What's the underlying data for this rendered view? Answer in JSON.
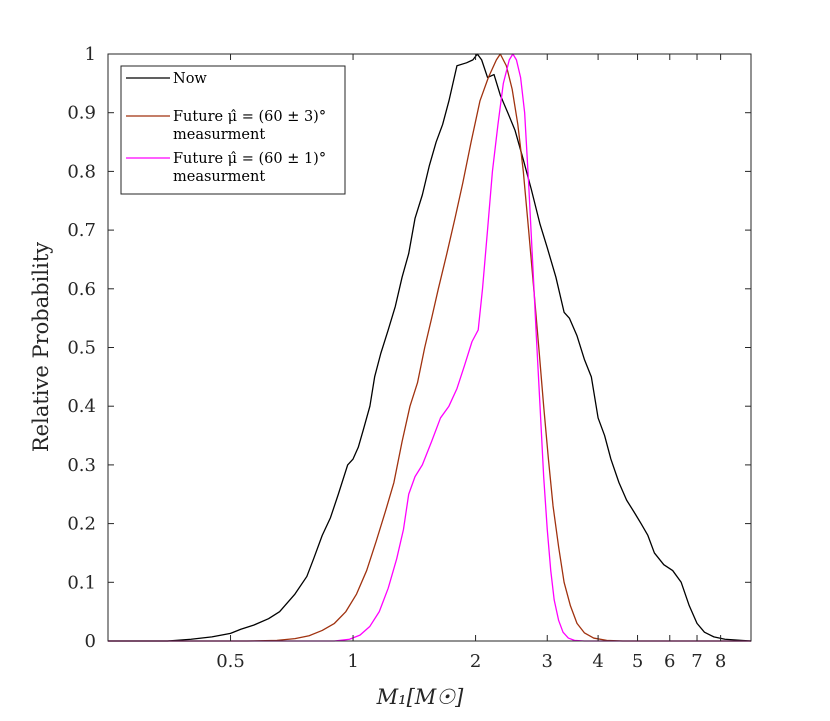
{
  "chart_data": {
    "type": "line",
    "title": "",
    "xlabel": "M₁[M☉]",
    "ylabel": "Relative Probability",
    "xscale": "log",
    "xlim": [
      0.25,
      9.5
    ],
    "ylim": [
      0,
      1
    ],
    "grid": false,
    "legend_position": "top-left",
    "x_ticks": [
      {
        "value": 0.5,
        "label": "0.5"
      },
      {
        "value": 1,
        "label": "1"
      },
      {
        "value": 2,
        "label": "2"
      },
      {
        "value": 3,
        "label": "3"
      },
      {
        "value": 4,
        "label": "4"
      },
      {
        "value": 5,
        "label": "5"
      },
      {
        "value": 6,
        "label": "6"
      },
      {
        "value": 7,
        "label": "7"
      },
      {
        "value": 8,
        "label": "8"
      }
    ],
    "y_ticks": [
      {
        "value": 0,
        "label": "0"
      },
      {
        "value": 0.1,
        "label": "0.1"
      },
      {
        "value": 0.2,
        "label": "0.2"
      },
      {
        "value": 0.3,
        "label": "0.3"
      },
      {
        "value": 0.4,
        "label": "0.4"
      },
      {
        "value": 0.5,
        "label": "0.5"
      },
      {
        "value": 0.6,
        "label": "0.6"
      },
      {
        "value": 0.7,
        "label": "0.7"
      },
      {
        "value": 0.8,
        "label": "0.8"
      },
      {
        "value": 0.9,
        "label": "0.9"
      },
      {
        "value": 1,
        "label": "1"
      }
    ],
    "series": [
      {
        "name": "Now",
        "legend_lines": [
          "Now"
        ],
        "color": "#000000",
        "points": [
          [
            0.25,
            0
          ],
          [
            0.35,
            0.0
          ],
          [
            0.4,
            0.003
          ],
          [
            0.45,
            0.007
          ],
          [
            0.5,
            0.013
          ],
          [
            0.53,
            0.02
          ],
          [
            0.57,
            0.027
          ],
          [
            0.62,
            0.038
          ],
          [
            0.66,
            0.05
          ],
          [
            0.72,
            0.08
          ],
          [
            0.77,
            0.11
          ],
          [
            0.8,
            0.14
          ],
          [
            0.84,
            0.18
          ],
          [
            0.88,
            0.21
          ],
          [
            0.92,
            0.25
          ],
          [
            0.97,
            0.3
          ],
          [
            1.0,
            0.31
          ],
          [
            1.03,
            0.33
          ],
          [
            1.06,
            0.36
          ],
          [
            1.1,
            0.4
          ],
          [
            1.13,
            0.45
          ],
          [
            1.17,
            0.49
          ],
          [
            1.22,
            0.53
          ],
          [
            1.27,
            0.57
          ],
          [
            1.32,
            0.62
          ],
          [
            1.37,
            0.66
          ],
          [
            1.42,
            0.72
          ],
          [
            1.48,
            0.76
          ],
          [
            1.54,
            0.81
          ],
          [
            1.6,
            0.85
          ],
          [
            1.66,
            0.88
          ],
          [
            1.72,
            0.92
          ],
          [
            1.8,
            0.98
          ],
          [
            1.9,
            0.985
          ],
          [
            1.97,
            0.99
          ],
          [
            2.02,
            1.0
          ],
          [
            2.07,
            0.99
          ],
          [
            2.14,
            0.96
          ],
          [
            2.22,
            0.965
          ],
          [
            2.3,
            0.93
          ],
          [
            2.4,
            0.9
          ],
          [
            2.5,
            0.87
          ],
          [
            2.62,
            0.82
          ],
          [
            2.74,
            0.77
          ],
          [
            2.88,
            0.71
          ],
          [
            3.0,
            0.67
          ],
          [
            3.15,
            0.62
          ],
          [
            3.3,
            0.56
          ],
          [
            3.4,
            0.55
          ],
          [
            3.55,
            0.52
          ],
          [
            3.7,
            0.48
          ],
          [
            3.85,
            0.45
          ],
          [
            4.0,
            0.38
          ],
          [
            4.15,
            0.35
          ],
          [
            4.3,
            0.31
          ],
          [
            4.5,
            0.27
          ],
          [
            4.7,
            0.24
          ],
          [
            4.9,
            0.22
          ],
          [
            5.1,
            0.2
          ],
          [
            5.3,
            0.18
          ],
          [
            5.5,
            0.15
          ],
          [
            5.8,
            0.13
          ],
          [
            6.1,
            0.12
          ],
          [
            6.4,
            0.1
          ],
          [
            6.7,
            0.06
          ],
          [
            7.0,
            0.03
          ],
          [
            7.3,
            0.015
          ],
          [
            7.7,
            0.007
          ],
          [
            8.2,
            0.003
          ],
          [
            9.0,
            0.001
          ],
          [
            9.5,
            0
          ]
        ]
      },
      {
        "name": "Future μ̂ = (60 ± 3)°",
        "legend_lines": [
          "Future μ̂ = (60 ± 3)°",
          "measurment"
        ],
        "color": "#a0320f",
        "points": [
          [
            0.25,
            0
          ],
          [
            0.55,
            0
          ],
          [
            0.65,
            0.001
          ],
          [
            0.72,
            0.004
          ],
          [
            0.78,
            0.009
          ],
          [
            0.84,
            0.018
          ],
          [
            0.9,
            0.03
          ],
          [
            0.96,
            0.05
          ],
          [
            1.02,
            0.08
          ],
          [
            1.08,
            0.12
          ],
          [
            1.14,
            0.17
          ],
          [
            1.2,
            0.22
          ],
          [
            1.26,
            0.27
          ],
          [
            1.32,
            0.34
          ],
          [
            1.38,
            0.4
          ],
          [
            1.44,
            0.44
          ],
          [
            1.5,
            0.5
          ],
          [
            1.56,
            0.55
          ],
          [
            1.62,
            0.6
          ],
          [
            1.7,
            0.66
          ],
          [
            1.78,
            0.72
          ],
          [
            1.86,
            0.78
          ],
          [
            1.95,
            0.85
          ],
          [
            2.05,
            0.92
          ],
          [
            2.15,
            0.96
          ],
          [
            2.25,
            0.99
          ],
          [
            2.3,
            1.0
          ],
          [
            2.38,
            0.98
          ],
          [
            2.46,
            0.94
          ],
          [
            2.54,
            0.88
          ],
          [
            2.62,
            0.8
          ],
          [
            2.7,
            0.7
          ],
          [
            2.78,
            0.6
          ],
          [
            2.86,
            0.5
          ],
          [
            2.94,
            0.4
          ],
          [
            3.02,
            0.31
          ],
          [
            3.1,
            0.23
          ],
          [
            3.2,
            0.16
          ],
          [
            3.3,
            0.1
          ],
          [
            3.42,
            0.06
          ],
          [
            3.55,
            0.03
          ],
          [
            3.7,
            0.014
          ],
          [
            3.9,
            0.005
          ],
          [
            4.2,
            0.001
          ],
          [
            4.6,
            0
          ],
          [
            9.5,
            0
          ]
        ]
      },
      {
        "name": "Future μ̂ = (60 ± 1)°",
        "legend_lines": [
          "Future μ̂ = (60 ± 1)°",
          "measurment"
        ],
        "color": "#ff00ff",
        "points": [
          [
            0.25,
            0
          ],
          [
            0.9,
            0
          ],
          [
            0.98,
            0.003
          ],
          [
            1.04,
            0.01
          ],
          [
            1.1,
            0.025
          ],
          [
            1.16,
            0.05
          ],
          [
            1.22,
            0.09
          ],
          [
            1.28,
            0.14
          ],
          [
            1.33,
            0.19
          ],
          [
            1.37,
            0.25
          ],
          [
            1.42,
            0.28
          ],
          [
            1.48,
            0.3
          ],
          [
            1.56,
            0.34
          ],
          [
            1.64,
            0.38
          ],
          [
            1.72,
            0.4
          ],
          [
            1.8,
            0.43
          ],
          [
            1.88,
            0.47
          ],
          [
            1.96,
            0.51
          ],
          [
            2.03,
            0.53
          ],
          [
            2.08,
            0.6
          ],
          [
            2.14,
            0.7
          ],
          [
            2.2,
            0.8
          ],
          [
            2.27,
            0.88
          ],
          [
            2.34,
            0.95
          ],
          [
            2.42,
            0.99
          ],
          [
            2.47,
            1.0
          ],
          [
            2.52,
            0.99
          ],
          [
            2.58,
            0.96
          ],
          [
            2.64,
            0.9
          ],
          [
            2.7,
            0.78
          ],
          [
            2.76,
            0.65
          ],
          [
            2.82,
            0.52
          ],
          [
            2.88,
            0.4
          ],
          [
            2.94,
            0.28
          ],
          [
            3.0,
            0.19
          ],
          [
            3.06,
            0.12
          ],
          [
            3.12,
            0.07
          ],
          [
            3.2,
            0.035
          ],
          [
            3.28,
            0.015
          ],
          [
            3.38,
            0.005
          ],
          [
            3.5,
            0.001
          ],
          [
            3.7,
            0
          ],
          [
            9.5,
            0
          ]
        ]
      }
    ]
  }
}
